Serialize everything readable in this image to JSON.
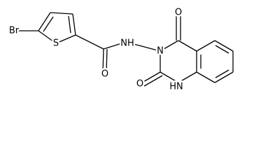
{
  "atoms": {
    "br": "Br",
    "s": "S",
    "amide_o": "O",
    "amide_nh": "NH",
    "n3": "N",
    "c4_o": "O",
    "c2_o": "O",
    "n1h": "HN"
  }
}
